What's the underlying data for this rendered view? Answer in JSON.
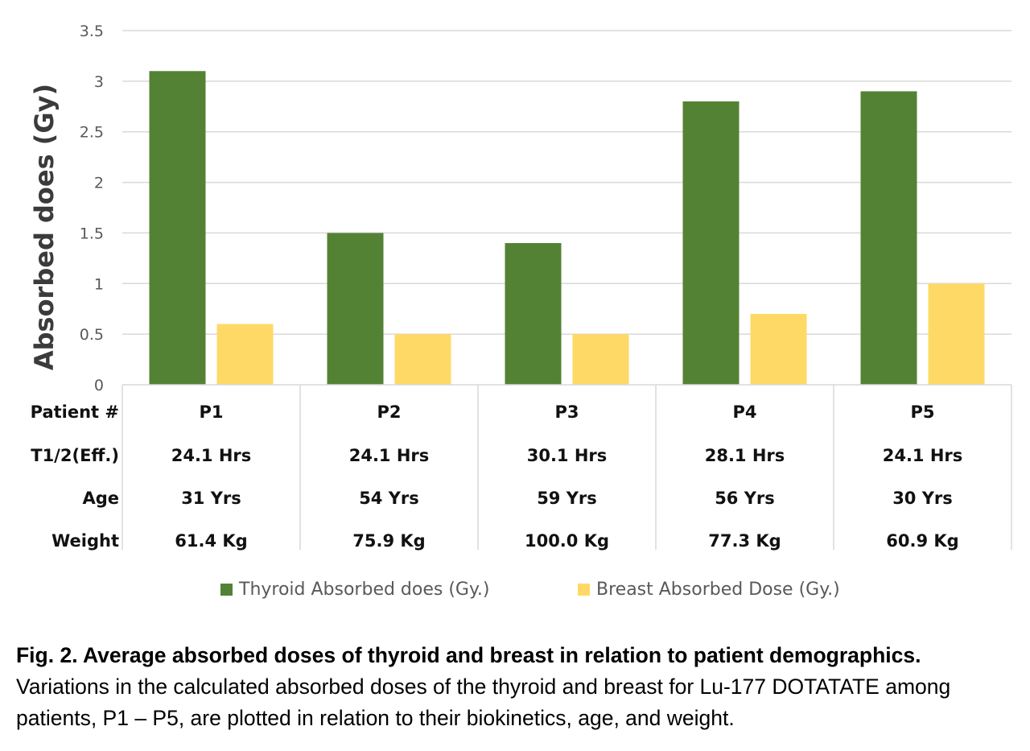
{
  "chart_data": {
    "type": "bar",
    "categories": [
      "P1",
      "P2",
      "P3",
      "P4",
      "P5"
    ],
    "series": [
      {
        "name": "Thyroid Absorbed does (Gy.)",
        "values": [
          3.1,
          1.5,
          1.4,
          2.8,
          2.9
        ],
        "color": "#548235"
      },
      {
        "name": "Breast Absorbed Dose (Gy.)",
        "values": [
          0.6,
          0.5,
          0.5,
          0.7,
          1.0
        ],
        "color": "#FFD966"
      }
    ],
    "ylabel": "Absorbed does  (Gy)",
    "ylim": [
      0,
      3.5
    ],
    "yticks": [
      "0",
      "0.5",
      "1",
      "1.5",
      "2",
      "2.5",
      "3",
      "3.5"
    ],
    "grid": true,
    "legend_position": "bottom",
    "data_table": {
      "row_labels": [
        "Patient #",
        "T1/2(Eff.)",
        "Age",
        "Weight"
      ],
      "rows": [
        [
          "P1",
          "P2",
          "P3",
          "P4",
          "P5"
        ],
        [
          "24.1 Hrs",
          "24.1 Hrs",
          "30.1 Hrs",
          "28.1 Hrs",
          "24.1 Hrs"
        ],
        [
          "31 Yrs",
          "54 Yrs",
          "59 Yrs",
          "56 Yrs",
          "30 Yrs"
        ],
        [
          "61.4 Kg",
          "75.9 Kg",
          "100.0 Kg",
          "77.3 Kg",
          "60.9 Kg"
        ]
      ]
    }
  },
  "caption": {
    "title": "Fig. 2. Average absorbed doses of thyroid and breast in relation to patient demographics.",
    "body": "Variations in the calculated absorbed doses of the thyroid and breast for Lu-177 DOTATATE among patients, P1 – P5, are plotted in relation to their biokinetics, age, and weight."
  }
}
